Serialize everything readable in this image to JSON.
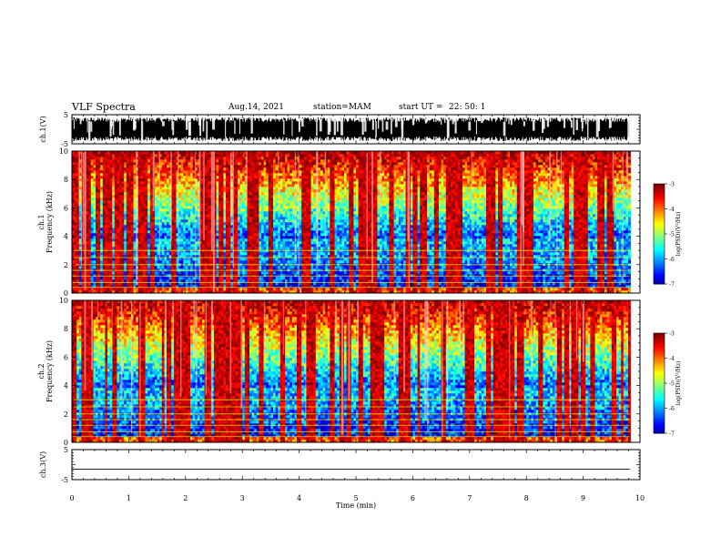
{
  "header": {
    "title": "VLF  Spectra",
    "date": "Aug.14, 2021",
    "station": "station=MAM",
    "start_label": "start  UT  =",
    "start_value": "22: 50: 1"
  },
  "chart_data": [
    {
      "type": "line",
      "panel": "ch1-waveform",
      "ylabel": "ch.1(V)",
      "ylim": [
        -5,
        5
      ],
      "y_ticks": [
        -5,
        5
      ],
      "xlim": [
        0,
        10
      ],
      "description_values": "dense saturated oscillation between about -4 and 4 V",
      "data_end_min": 9.82
    },
    {
      "type": "heatmap",
      "panel": "ch1-spectrogram",
      "ylabel": "ch.1\nFrequency  (kHz)",
      "ylim": [
        0,
        10
      ],
      "y_ticks": [
        0,
        2,
        4,
        6,
        8,
        10
      ],
      "xlim": [
        0,
        10
      ],
      "data_end_min": 9.82,
      "colorbar": {
        "label": "log(PSD)(V²/Hz)",
        "range": [
          -7,
          -3
        ],
        "ticks": [
          -3,
          -4,
          -5,
          -6,
          -7
        ]
      }
    },
    {
      "type": "heatmap",
      "panel": "ch2-spectrogram",
      "ylabel": "ch.2\nFrequency  (kHz)",
      "ylim": [
        0,
        10
      ],
      "y_ticks": [
        0,
        2,
        4,
        6,
        8,
        10
      ],
      "xlim": [
        0,
        10
      ],
      "data_end_min": 9.82,
      "colorbar": {
        "label": "log(PSD)(V²/Hz)",
        "range": [
          -7,
          -3
        ],
        "ticks": [
          -3,
          -4,
          -5,
          -6,
          -7
        ]
      }
    },
    {
      "type": "line",
      "panel": "ch3-waveform",
      "ylabel": "ch.3(V)",
      "ylim": [
        -5,
        5
      ],
      "y_ticks": [
        -5,
        5
      ],
      "xlim": [
        0,
        10
      ],
      "x": [
        0,
        9.82
      ],
      "y": [
        -1.5,
        -1.5
      ],
      "xlabel": "Time  (min)",
      "x_ticks": [
        0,
        1,
        2,
        3,
        4,
        5,
        6,
        7,
        8,
        9,
        10
      ]
    }
  ],
  "colors": {
    "jet_low": "#00007f",
    "jet_high": "#ff0000",
    "waveform": "#000000"
  }
}
